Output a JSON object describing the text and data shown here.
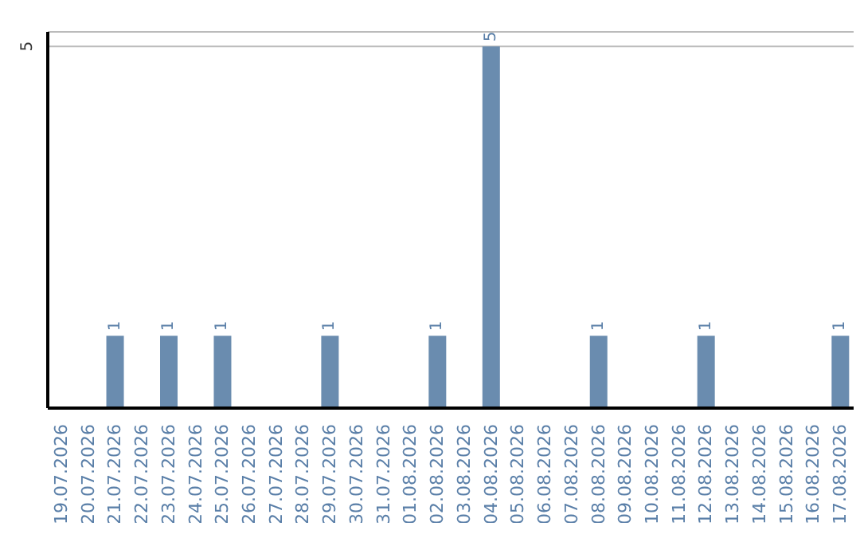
{
  "chart_data": {
    "type": "bar",
    "categories": [
      "19.07.2026",
      "20.07.2026",
      "21.07.2026",
      "22.07.2026",
      "23.07.2026",
      "24.07.2026",
      "25.07.2026",
      "26.07.2026",
      "27.07.2026",
      "28.07.2026",
      "29.07.2026",
      "30.07.2026",
      "31.07.2026",
      "01.08.2026",
      "02.08.2026",
      "03.08.2026",
      "04.08.2026",
      "05.08.2026",
      "06.08.2026",
      "07.08.2026",
      "08.08.2026",
      "09.08.2026",
      "10.08.2026",
      "11.08.2026",
      "12.08.2026",
      "13.08.2026",
      "14.08.2026",
      "15.08.2026",
      "16.08.2026",
      "17.08.2026"
    ],
    "values": [
      0,
      0,
      1,
      0,
      1,
      0,
      1,
      0,
      0,
      0,
      1,
      0,
      0,
      0,
      1,
      0,
      5,
      0,
      0,
      0,
      1,
      0,
      0,
      0,
      1,
      0,
      0,
      0,
      0,
      1
    ],
    "value_labels": [
      null,
      null,
      "1",
      null,
      "1",
      null,
      "1",
      null,
      null,
      null,
      "1",
      null,
      null,
      null,
      "1",
      null,
      "5",
      null,
      null,
      null,
      "1",
      null,
      null,
      null,
      "1",
      null,
      null,
      null,
      null,
      "1"
    ],
    "color": "#6a8caf",
    "ylim": [
      0,
      5.2
    ],
    "yticks": [
      5
    ],
    "grid": "y"
  }
}
